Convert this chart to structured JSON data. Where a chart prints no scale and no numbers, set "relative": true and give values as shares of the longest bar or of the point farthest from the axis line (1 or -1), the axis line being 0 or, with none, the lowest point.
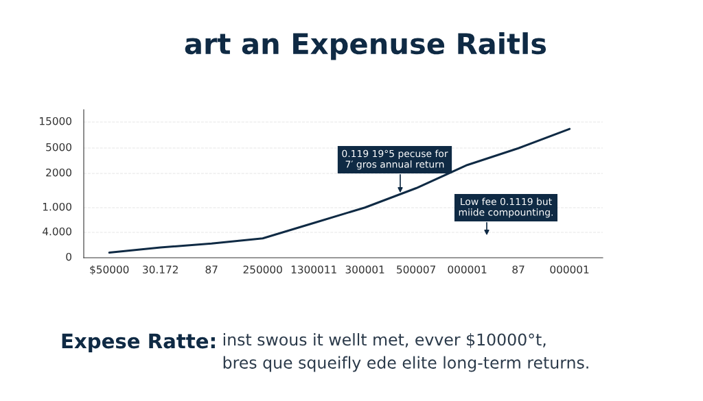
{
  "chart_data": {
    "type": "line",
    "title": "art an Expenuse Raitls",
    "categories": [
      "$50000",
      "30.172",
      "87",
      "250000",
      "1300011",
      "300001",
      "500007",
      "000001",
      "87",
      "000001"
    ],
    "relative": true,
    "series": [
      {
        "color": "#0f2a44",
        "values": [
          0.04,
          0.08,
          0.11,
          0.15,
          0.27,
          0.39,
          0.54,
          0.72,
          0.85,
          1.0
        ]
      }
    ],
    "grid": "y",
    "annotations": [
      "15000",
      "5000",
      "2000",
      "1.000",
      "4.000",
      "0",
      "0.119 19°5 pecuse for\n7′ gros annual return",
      "Low fee 0.1119 but\nmiide compounting.",
      "Expese Ratte:",
      "inst swous it wellt met, evver $10000°t,\nbres que squeifly ede elite long-term returns."
    ]
  }
}
